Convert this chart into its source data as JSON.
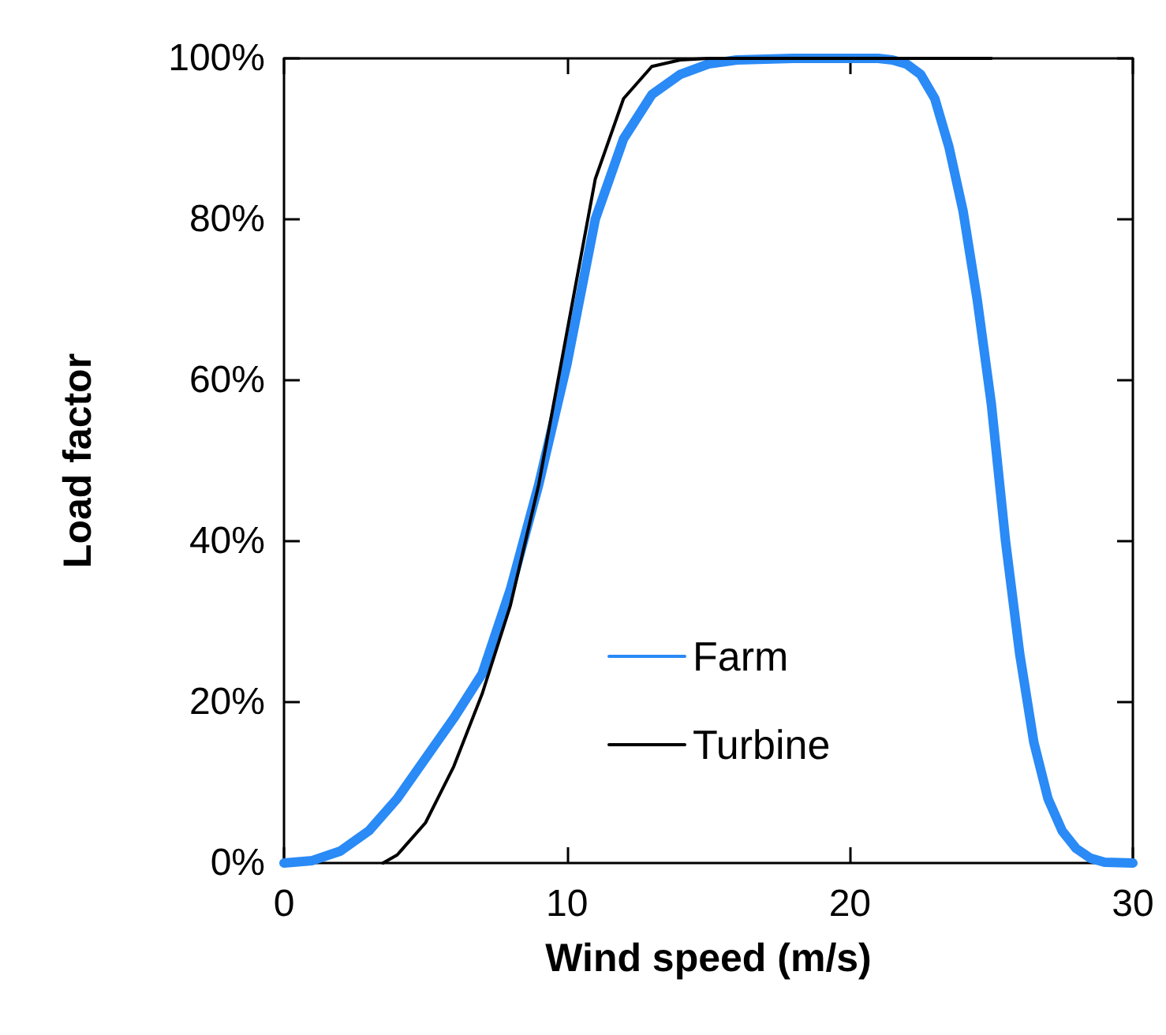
{
  "chart_data": {
    "type": "line",
    "xlabel": "Wind speed (m/s)",
    "ylabel": "Load factor",
    "xlim": [
      0,
      30
    ],
    "xticks": [
      0,
      10,
      20,
      30
    ],
    "ylim": [
      0,
      100
    ],
    "yticks": [
      {
        "value": 0,
        "label": "0%"
      },
      {
        "value": 20,
        "label": "20%"
      },
      {
        "value": 40,
        "label": "40%"
      },
      {
        "value": 60,
        "label": "60%"
      },
      {
        "value": 80,
        "label": "80%"
      },
      {
        "value": 100,
        "label": "100%"
      }
    ],
    "grid": false,
    "legend": "bottom",
    "marker": "none",
    "line_style": "solid",
    "series": [
      {
        "name": "Farm",
        "color": "#2a8af6",
        "x": [
          0,
          1,
          2,
          3,
          4,
          5,
          6,
          7,
          8,
          9,
          10,
          11,
          12,
          13,
          14,
          15,
          16,
          18,
          21,
          21.5,
          22,
          22.5,
          23,
          23.5,
          24,
          24.5,
          25,
          25.5,
          26,
          26.5,
          27,
          27.5,
          28,
          28.5,
          29,
          30
        ],
        "values": [
          0,
          0.3,
          1.5,
          4,
          8,
          13,
          18,
          23.5,
          34,
          47,
          62,
          80,
          90,
          95.5,
          98,
          99.3,
          99.8,
          100,
          100,
          99.8,
          99.3,
          98,
          95,
          89,
          81,
          70,
          57,
          40,
          26,
          15,
          8,
          4,
          1.8,
          0.6,
          0.1,
          0
        ]
      },
      {
        "name": "Turbine",
        "color": "#000000",
        "x": [
          3.5,
          4,
          5,
          6,
          7,
          8,
          9,
          10,
          11,
          12,
          13,
          14,
          15,
          25
        ],
        "values": [
          0,
          1,
          5,
          12,
          21,
          32,
          47,
          66,
          85,
          95,
          99,
          99.8,
          100,
          100
        ]
      }
    ]
  }
}
